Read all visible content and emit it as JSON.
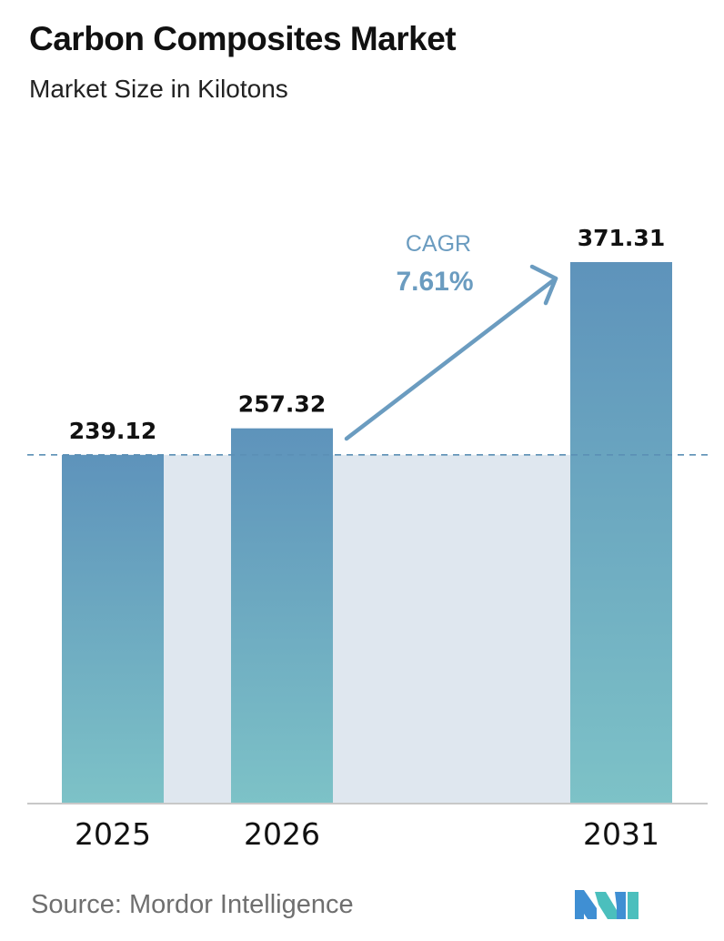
{
  "header": {
    "title": "Carbon Composites Market",
    "subtitle": "Market Size in Kilotons"
  },
  "chart_data": {
    "type": "bar",
    "title": "Carbon Composites Market",
    "subtitle": "Market Size in Kilotons",
    "categories": [
      "2025",
      "2026",
      "2031"
    ],
    "values": [
      239.12,
      257.32,
      371.31
    ],
    "value_labels": [
      "239.12",
      "257.32",
      "371.31"
    ],
    "ylim": [
      0,
      371.31
    ],
    "grid": false,
    "legend": "none",
    "reference_line": {
      "value": 239.12,
      "style": "dashed"
    },
    "annotation": {
      "label": "CAGR",
      "value": "7.61%"
    },
    "colors": {
      "bar_top": "#5e93bb",
      "bar_bottom": "#7dc2c7",
      "band": "#dfe7ef",
      "annotation": "#6b9cc0",
      "axis": "#c8c8c8",
      "reference_line": "#5b8fb5"
    }
  },
  "footer": {
    "source": "Source:  Mordor Intelligence",
    "logo_icon": "mordor-intelligence-logo-icon",
    "logo_colors": [
      "#3f8fd3",
      "#4bbfbd"
    ]
  }
}
